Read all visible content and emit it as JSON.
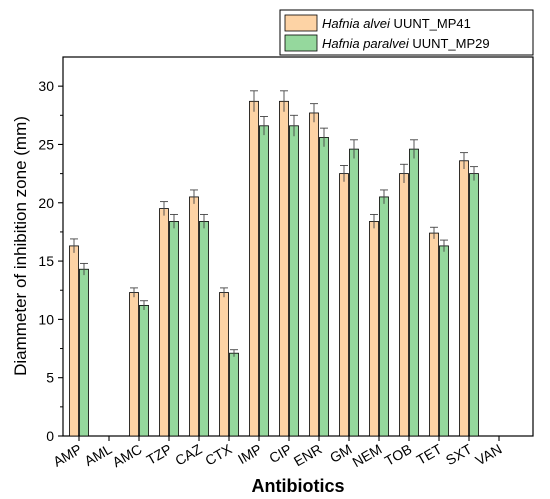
{
  "chart_data": {
    "type": "bar",
    "xlabel": "Antibiotics",
    "ylabel": "Diammeter of inhibition zone (mm)",
    "ylim": [
      0,
      32.5
    ],
    "yticks": [
      0,
      5,
      10,
      15,
      20,
      25,
      30
    ],
    "categories": [
      "AMP",
      "AML",
      "AMC",
      "TZP",
      "CAZ",
      "CTX",
      "IMP",
      "CIP",
      "ENR",
      "GM",
      "NEM",
      "TOB",
      "TET",
      "SXT",
      "VAN"
    ],
    "series": [
      {
        "name_italic": "Hafnia alvei",
        "name_suffix": " UUNT_MP41",
        "color": "#fdd3a5",
        "values": [
          16.3,
          0,
          12.3,
          19.5,
          20.5,
          12.3,
          28.7,
          28.7,
          27.7,
          22.5,
          18.4,
          22.5,
          17.4,
          23.6,
          0
        ],
        "errors": [
          0.6,
          0,
          0.4,
          0.6,
          0.6,
          0.4,
          0.9,
          0.9,
          0.8,
          0.7,
          0.6,
          0.8,
          0.5,
          0.7,
          0
        ]
      },
      {
        "name_italic": "Hafnia paralvei",
        "name_suffix": " UUNT_MP29",
        "color": "#95d89d",
        "values": [
          14.3,
          0,
          11.2,
          18.4,
          18.4,
          7.1,
          26.6,
          26.6,
          25.6,
          24.6,
          20.5,
          24.6,
          16.3,
          22.5,
          0
        ],
        "errors": [
          0.5,
          0,
          0.4,
          0.6,
          0.6,
          0.3,
          0.8,
          0.9,
          0.8,
          0.8,
          0.6,
          0.8,
          0.5,
          0.6,
          0
        ]
      }
    ],
    "legend_position": "top-right",
    "grid": false
  }
}
